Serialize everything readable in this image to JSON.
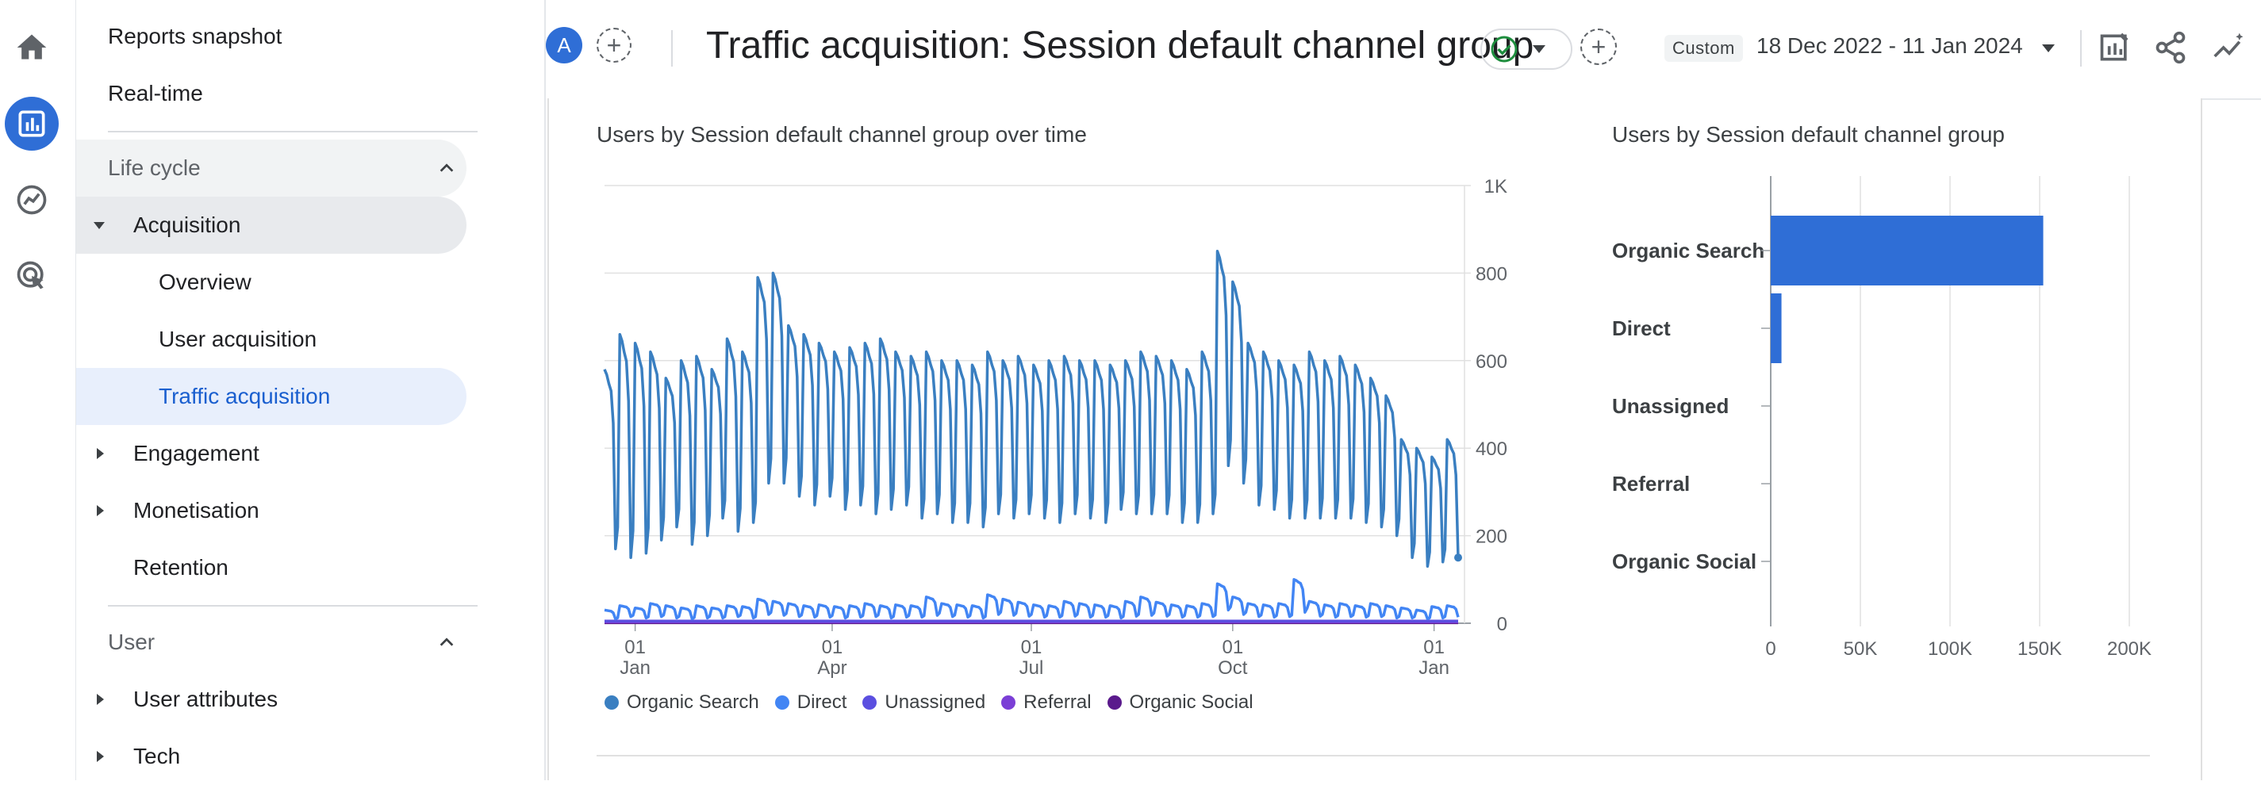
{
  "rail": {
    "icons": [
      "home-icon",
      "reports-icon",
      "explore-icon",
      "advertising-icon"
    ]
  },
  "nav": {
    "reports_snapshot": "Reports snapshot",
    "realtime": "Real-time",
    "lifecycle_section": "Life cycle",
    "acquisition": "Acquisition",
    "overview": "Overview",
    "user_acquisition": "User acquisition",
    "traffic_acquisition": "Traffic acquisition",
    "engagement": "Engagement",
    "monetisation": "Monetisation",
    "retention": "Retention",
    "user_section": "User",
    "user_attributes": "User attributes",
    "tech": "Tech"
  },
  "header": {
    "avatar_letter": "A",
    "title": "Traffic acquisition: Session default channel group",
    "custom_badge": "Custom",
    "date_range": "18 Dec 2022 - 11 Jan 2024"
  },
  "colors": {
    "accent": "#2f6ed6",
    "organic_search": "#3a7fc1",
    "direct": "#4285f4",
    "unassigned": "#5b4fe0",
    "referral": "#7b3fd6",
    "organic_social": "#5a1a8c"
  },
  "chart_data": [
    {
      "type": "line",
      "title": "Users by Session default channel group over time",
      "x_ticks": [
        {
          "top": "01",
          "bottom": "Jan"
        },
        {
          "top": "01",
          "bottom": "Apr"
        },
        {
          "top": "01",
          "bottom": "Jul"
        },
        {
          "top": "01",
          "bottom": "Oct"
        },
        {
          "top": "01",
          "bottom": "Jan"
        }
      ],
      "y_ticks": [
        "0",
        "200",
        "400",
        "600",
        "800",
        "1K"
      ],
      "ylim": [
        0,
        1000
      ],
      "x_range_days": [
        0,
        390
      ],
      "series": [
        {
          "name": "Organic Search",
          "weekly_peak_trough": [
            [
              580,
              170
            ],
            [
              660,
              150
            ],
            [
              640,
              160
            ],
            [
              620,
              190
            ],
            [
              560,
              220
            ],
            [
              600,
              180
            ],
            [
              610,
              200
            ],
            [
              580,
              240
            ],
            [
              650,
              210
            ],
            [
              620,
              230
            ],
            [
              790,
              320
            ],
            [
              800,
              320
            ],
            [
              680,
              290
            ],
            [
              660,
              270
            ],
            [
              640,
              290
            ],
            [
              620,
              260
            ],
            [
              630,
              270
            ],
            [
              640,
              250
            ],
            [
              650,
              260
            ],
            [
              620,
              270
            ],
            [
              610,
              240
            ],
            [
              620,
              250
            ],
            [
              600,
              230
            ],
            [
              600,
              230
            ],
            [
              590,
              220
            ],
            [
              620,
              250
            ],
            [
              600,
              240
            ],
            [
              610,
              250
            ],
            [
              590,
              240
            ],
            [
              600,
              230
            ],
            [
              610,
              250
            ],
            [
              600,
              240
            ],
            [
              600,
              230
            ],
            [
              590,
              260
            ],
            [
              600,
              250
            ],
            [
              620,
              250
            ],
            [
              610,
              250
            ],
            [
              600,
              230
            ],
            [
              580,
              230
            ],
            [
              620,
              250
            ],
            [
              850,
              360
            ],
            [
              780,
              320
            ],
            [
              640,
              270
            ],
            [
              620,
              260
            ],
            [
              600,
              240
            ],
            [
              590,
              240
            ],
            [
              620,
              240
            ],
            [
              600,
              240
            ],
            [
              610,
              240
            ],
            [
              590,
              230
            ],
            [
              560,
              220
            ],
            [
              520,
              200
            ],
            [
              420,
              150
            ],
            [
              400,
              130
            ],
            [
              380,
              140
            ],
            [
              420,
              150
            ]
          ]
        },
        {
          "name": "Direct",
          "weekly_peak_trough": [
            [
              30,
              10
            ],
            [
              40,
              15
            ],
            [
              35,
              12
            ],
            [
              45,
              15
            ],
            [
              40,
              12
            ],
            [
              35,
              10
            ],
            [
              40,
              12
            ],
            [
              35,
              12
            ],
            [
              40,
              15
            ],
            [
              38,
              12
            ],
            [
              55,
              20
            ],
            [
              50,
              18
            ],
            [
              45,
              15
            ],
            [
              40,
              14
            ],
            [
              42,
              14
            ],
            [
              38,
              12
            ],
            [
              40,
              14
            ],
            [
              45,
              15
            ],
            [
              40,
              12
            ],
            [
              42,
              14
            ],
            [
              40,
              14
            ],
            [
              60,
              18
            ],
            [
              45,
              15
            ],
            [
              42,
              14
            ],
            [
              40,
              12
            ],
            [
              65,
              20
            ],
            [
              55,
              18
            ],
            [
              48,
              16
            ],
            [
              42,
              14
            ],
            [
              40,
              14
            ],
            [
              50,
              16
            ],
            [
              45,
              14
            ],
            [
              42,
              14
            ],
            [
              40,
              12
            ],
            [
              50,
              16
            ],
            [
              60,
              18
            ],
            [
              48,
              16
            ],
            [
              42,
              14
            ],
            [
              40,
              14
            ],
            [
              45,
              15
            ],
            [
              90,
              30
            ],
            [
              60,
              20
            ],
            [
              45,
              15
            ],
            [
              42,
              14
            ],
            [
              45,
              15
            ],
            [
              100,
              25
            ],
            [
              50,
              16
            ],
            [
              42,
              14
            ],
            [
              45,
              15
            ],
            [
              40,
              14
            ],
            [
              45,
              15
            ],
            [
              40,
              12
            ],
            [
              35,
              12
            ],
            [
              30,
              10
            ],
            [
              38,
              12
            ],
            [
              40,
              14
            ]
          ]
        },
        {
          "name": "Unassigned",
          "values_approx": 5
        },
        {
          "name": "Referral",
          "values_approx": 3
        },
        {
          "name": "Organic Social",
          "values_approx": 1
        }
      ]
    },
    {
      "type": "bar",
      "orientation": "horizontal",
      "title": "Users by Session default channel group",
      "categories": [
        "Organic Search",
        "Direct",
        "Unassigned",
        "Referral",
        "Organic Social"
      ],
      "values": [
        152000,
        6000,
        0,
        0,
        0
      ],
      "x_ticks": [
        "0",
        "50K",
        "100K",
        "150K",
        "200K"
      ],
      "xlim": [
        0,
        200000
      ]
    }
  ]
}
